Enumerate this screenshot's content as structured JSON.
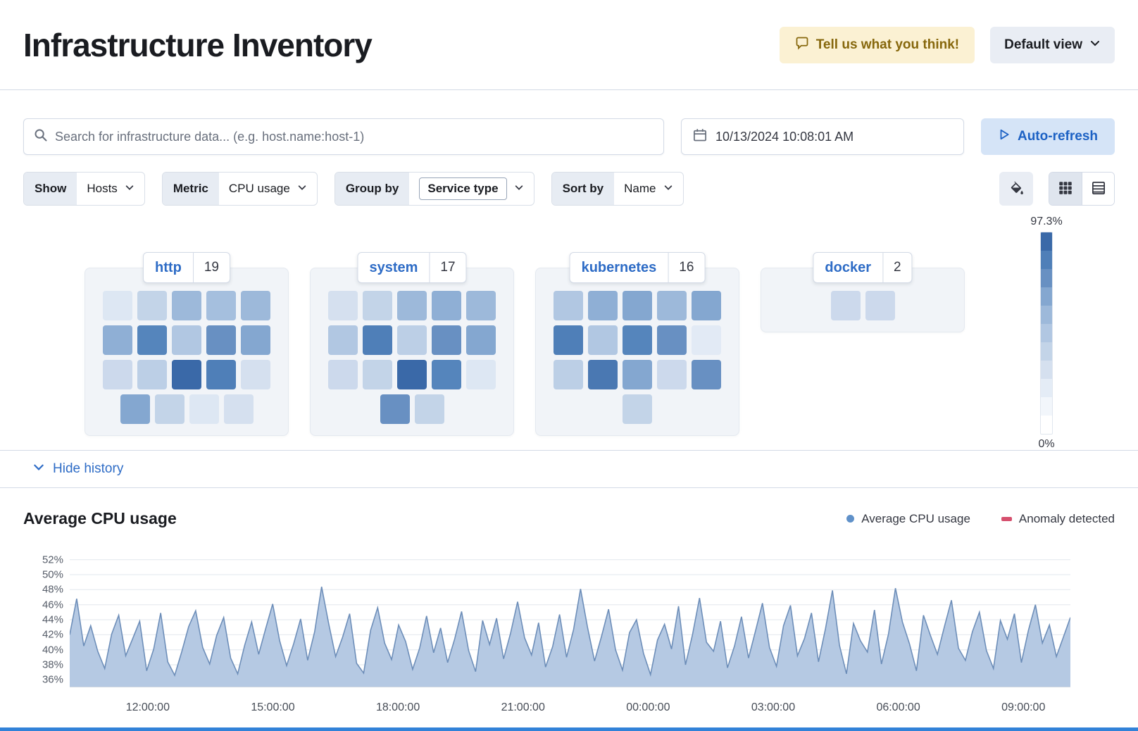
{
  "header": {
    "title": "Infrastructure Inventory",
    "feedback_button": "Tell us what you think!",
    "view_dropdown": "Default view"
  },
  "toolbar": {
    "search_placeholder": "Search for infrastructure data... (e.g. host.name:host-1)",
    "datetime": "10/13/2024 10:08:01 AM",
    "auto_refresh": "Auto-refresh"
  },
  "filters": {
    "show": {
      "label": "Show",
      "value": "Hosts"
    },
    "metric": {
      "label": "Metric",
      "value": "CPU usage"
    },
    "group_by": {
      "label": "Group by",
      "value": "Service type"
    },
    "sort_by": {
      "label": "Sort by",
      "value": "Name"
    }
  },
  "scale": {
    "max_label": "97.3%",
    "min_label": "0%",
    "colors": [
      "#3a69a8",
      "#4f7fb8",
      "#6890c2",
      "#84a7d0",
      "#9db9da",
      "#b1c7e2",
      "#c3d4e8",
      "#d5e0ef",
      "#e4ecf6",
      "#f2f6fb",
      "#ffffff"
    ]
  },
  "groups": [
    {
      "name": "http",
      "count": 19,
      "tile_rows": [
        [
          "#dde7f3",
          "#c3d4e8",
          "#9db9da",
          "#a5bfde",
          "#9db9da"
        ],
        [
          "#8fafd5",
          "#5585bc",
          "#b1c7e2",
          "#6890c2",
          "#84a7d0"
        ],
        [
          "#ccd9ec",
          "#bccfe6",
          "#3a69a8",
          "#4f7fb8",
          "#d5e0ef"
        ],
        [
          "#84a7d0",
          "#c3d4e8",
          "#dde7f3",
          "#d5e0ef"
        ]
      ]
    },
    {
      "name": "system",
      "count": 17,
      "tile_rows": [
        [
          "#d5e0ef",
          "#c3d4e8",
          "#9db9da",
          "#8fafd5",
          "#9db9da"
        ],
        [
          "#b1c7e2",
          "#4f7fb8",
          "#bccfe6",
          "#6890c2",
          "#84a7d0"
        ],
        [
          "#ccd9ec",
          "#c3d4e8",
          "#3a69a8",
          "#5585bc",
          "#dde7f3"
        ],
        [
          "#6890c2",
          "#c3d4e8"
        ]
      ]
    },
    {
      "name": "kubernetes",
      "count": 16,
      "tile_rows": [
        [
          "#b1c7e2",
          "#8fafd5",
          "#84a7d0",
          "#9db9da",
          "#84a7d0"
        ],
        [
          "#4f7fb8",
          "#b1c7e2",
          "#5585bc",
          "#6890c2",
          "#e2eaf5"
        ],
        [
          "#bccfe6",
          "#4a78b2",
          "#84a7d0",
          "#ccd9ec",
          "#6890c2"
        ],
        [
          "#c3d4e8"
        ]
      ]
    },
    {
      "name": "docker",
      "count": 2,
      "tile_rows": [
        [
          "#ccd9ec",
          "#ccd9ec"
        ]
      ]
    }
  ],
  "history": {
    "toggle_label": "Hide history"
  },
  "chart_data": {
    "type": "area",
    "title": "Average CPU usage",
    "legend": [
      {
        "label": "Average CPU usage",
        "color": "#6091c9",
        "marker": "dot"
      },
      {
        "label": "Anomaly detected",
        "color": "#d6506e",
        "marker": "dash"
      }
    ],
    "y_unit": "%",
    "y_ticks": [
      36,
      38,
      40,
      42,
      44,
      46,
      48,
      50,
      52
    ],
    "ylim": [
      35,
      53
    ],
    "x_tick_labels": [
      "12:00:00",
      "15:00:00",
      "18:00:00",
      "21:00:00",
      "00:00:00",
      "03:00:00",
      "06:00:00",
      "09:00:00"
    ],
    "x_tick_positions": [
      0.078,
      0.203,
      0.328,
      0.453,
      0.578,
      0.703,
      0.828,
      0.953
    ],
    "values": [
      42,
      46.8,
      40.5,
      43.2,
      39.8,
      37.5,
      42.1,
      44.6,
      39.2,
      41.5,
      43.8,
      37.2,
      40.1,
      44.9,
      38.4,
      36.6,
      39.7,
      43.1,
      45.2,
      40.3,
      38.1,
      41.9,
      44.3,
      38.9,
      36.8,
      40.6,
      43.7,
      39.4,
      42.8,
      46.1,
      41.2,
      37.9,
      40.8,
      44.1,
      38.6,
      42.4,
      48.4,
      43.5,
      39.1,
      41.7,
      44.8,
      38.2,
      36.9,
      42.6,
      45.6,
      40.9,
      38.7,
      43.3,
      41.1,
      37.4,
      40.2,
      44.5,
      39.6,
      42.9,
      38.3,
      41.4,
      45.1,
      39.9,
      37.1,
      43.9,
      40.7,
      44.2,
      38.8,
      42.2,
      46.4,
      41.6,
      39.3,
      43.6,
      37.7,
      40.4,
      44.7,
      39.0,
      42.7,
      48.1,
      43.0,
      38.5,
      41.8,
      45.4,
      40.0,
      37.3,
      42.3,
      44.0,
      39.5,
      36.7,
      41.3,
      43.4,
      40.1,
      45.8,
      38.0,
      42.0,
      46.9,
      41.0,
      39.8,
      43.8,
      37.6,
      40.5,
      44.4,
      38.9,
      42.5,
      46.2,
      40.3,
      37.8,
      43.2,
      45.9,
      39.2,
      41.5,
      44.9,
      38.4,
      42.8,
      47.9,
      40.6,
      36.8,
      43.5,
      41.2,
      39.7,
      45.3,
      38.1,
      42.1,
      48.2,
      43.7,
      40.8,
      37.2,
      44.6,
      41.9,
      39.4,
      43.1,
      46.6,
      40.2,
      38.6,
      42.4,
      45.0,
      39.9,
      37.5,
      43.9,
      41.4,
      44.8,
      38.3,
      42.6,
      46.0,
      40.9,
      43.3,
      39.1,
      41.7,
      44.3
    ]
  }
}
